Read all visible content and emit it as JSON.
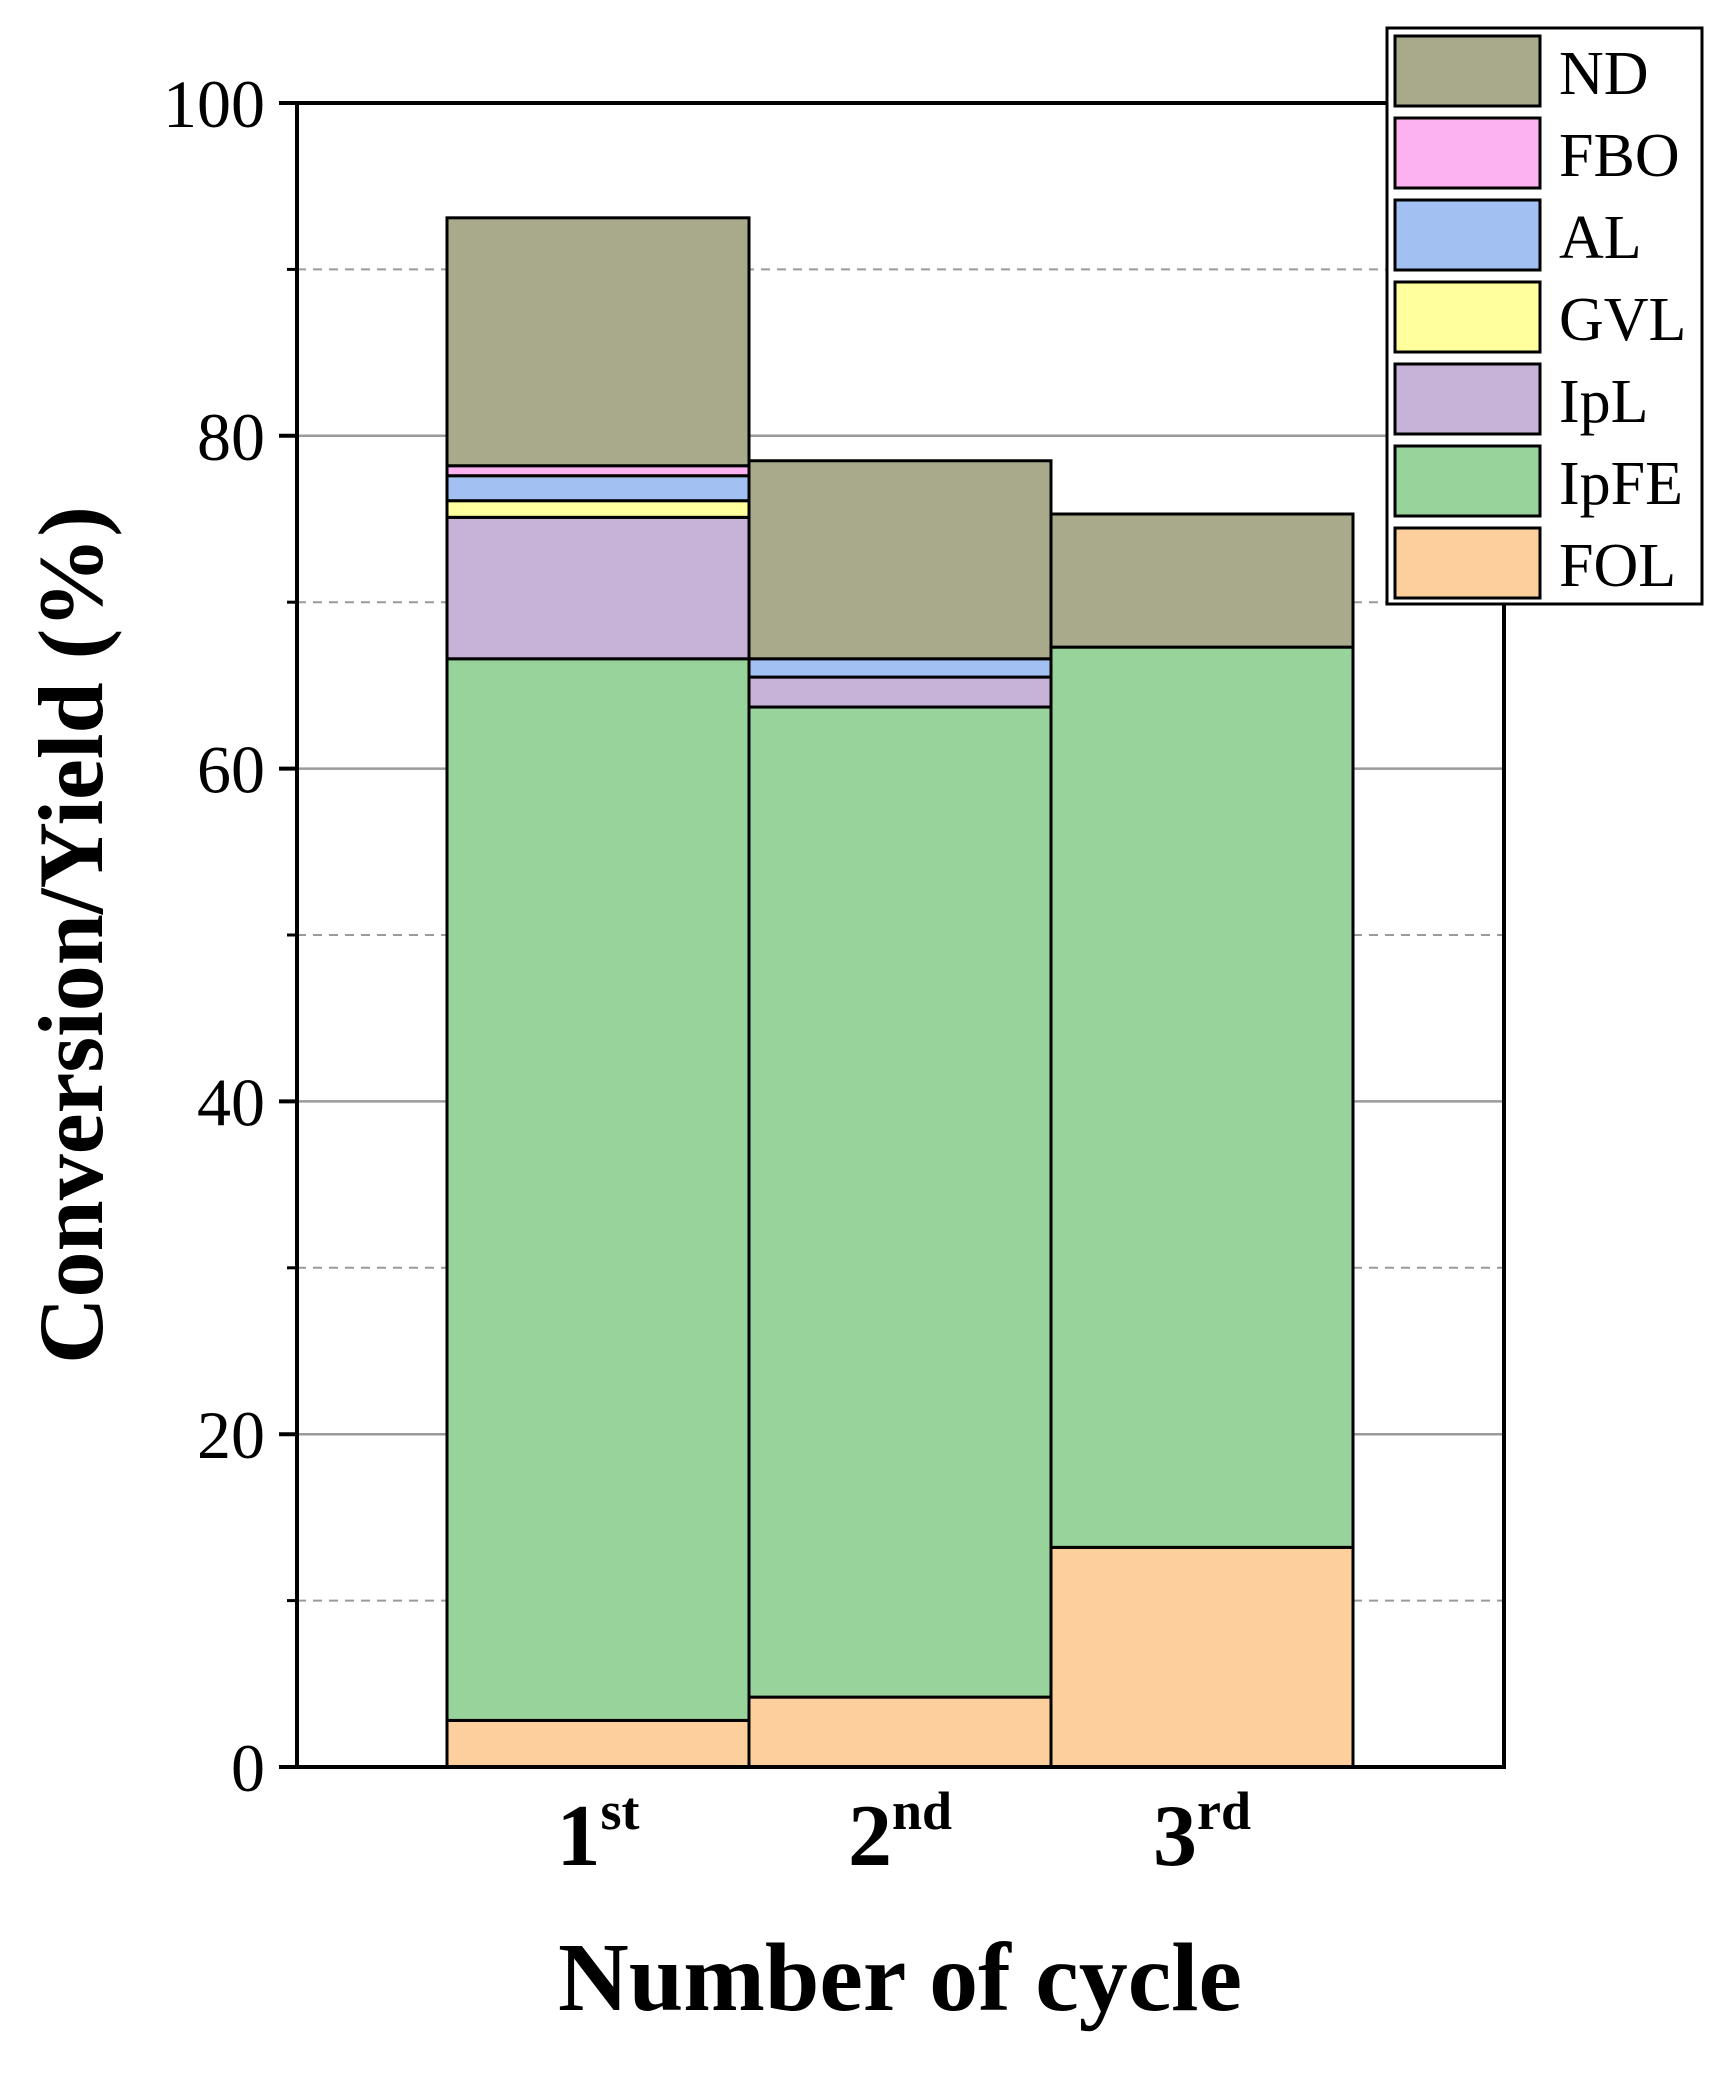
{
  "chart_data": {
    "type": "stacked-bar",
    "title": "",
    "xlabel": "Number of cycle",
    "ylabel": "Conversion/Yield (%)",
    "ylim": [
      0,
      100
    ],
    "yticks": [
      0,
      20,
      40,
      60,
      80,
      100
    ],
    "minor_grid": [
      10,
      30,
      50,
      70,
      90
    ],
    "categories": [
      {
        "base": "1",
        "sup": "st"
      },
      {
        "base": "2",
        "sup": "nd"
      },
      {
        "base": "3",
        "sup": "rd"
      }
    ],
    "series": [
      {
        "name": "FOL",
        "color": "#fdcf9d",
        "values": [
          2.8,
          4.2,
          13.2
        ]
      },
      {
        "name": "IpFE",
        "color": "#99d39c",
        "values": [
          63.8,
          59.5,
          54.1
        ]
      },
      {
        "name": "IpL",
        "color": "#c7b3d8",
        "values": [
          8.5,
          1.8,
          0.0
        ]
      },
      {
        "name": "GVL",
        "color": "#ffff9e",
        "values": [
          1.0,
          0.0,
          0.0
        ]
      },
      {
        "name": "AL",
        "color": "#a2c1f2",
        "values": [
          1.5,
          1.1,
          0.0
        ]
      },
      {
        "name": "FBO",
        "color": "#fcb2f1",
        "values": [
          0.6,
          0.0,
          0.0
        ]
      },
      {
        "name": "ND",
        "color": "#a9aa8c",
        "values": [
          14.9,
          11.9,
          8.0
        ]
      }
    ],
    "legend": {
      "position": "top-right",
      "order": [
        "ND",
        "FBO",
        "AL",
        "GVL",
        "IpL",
        "IpFE",
        "FOL"
      ]
    }
  }
}
